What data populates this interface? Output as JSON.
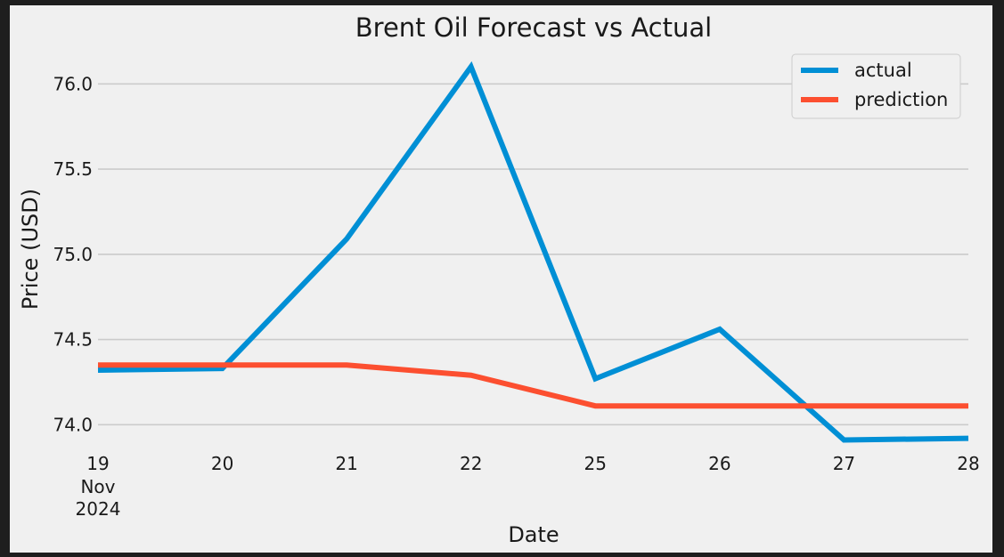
{
  "chart_data": {
    "type": "line",
    "title": "Brent Oil Forecast vs Actual",
    "xlabel": "Date",
    "ylabel": "Price (USD)",
    "categories": [
      "19",
      "20",
      "21",
      "22",
      "25",
      "26",
      "27",
      "28"
    ],
    "x_sublabels": [
      "Nov",
      "2024"
    ],
    "series": [
      {
        "name": "actual",
        "color": "#008fd5",
        "values": [
          74.32,
          74.33,
          75.09,
          76.1,
          74.27,
          74.56,
          73.91,
          73.92
        ]
      },
      {
        "name": "prediction",
        "color": "#fc4f30",
        "values": [
          74.35,
          74.35,
          74.35,
          74.29,
          74.11,
          74.11,
          74.11,
          74.11
        ]
      }
    ],
    "y_ticks": [
      "74.0",
      "74.5",
      "75.0",
      "75.5",
      "76.0"
    ],
    "ylim": [
      73.85,
      76.2
    ],
    "grid": "horizontal",
    "legend_position": "top-right"
  },
  "colors": {
    "background": "#f0f0f0",
    "grid": "#cbcbcb",
    "frame": "#1e1e1e"
  }
}
